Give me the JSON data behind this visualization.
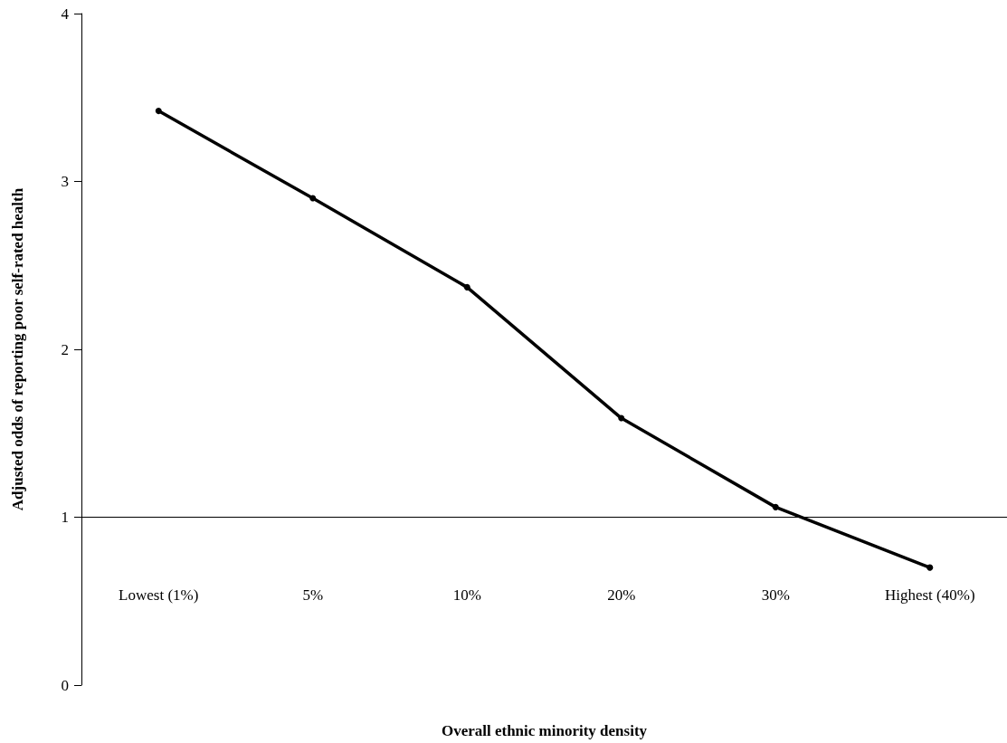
{
  "chart_data": {
    "type": "line",
    "xlabel": "Overall ethnic minority density",
    "ylabel": "Adjusted odds of reporting poor self-rated health",
    "categories": [
      "Lowest (1%)",
      "5%",
      "10%",
      "20%",
      "30%",
      "Highest (40%)"
    ],
    "series": [
      {
        "color": "#000000",
        "values": [
          3.42,
          2.9,
          2.37,
          1.59,
          1.06,
          0.7
        ]
      }
    ],
    "ylim": [
      0,
      4
    ],
    "yticks": [
      0,
      1,
      2,
      3,
      4
    ],
    "grid": false,
    "marker": "circle",
    "line_style": "solid",
    "ref_lines": [
      {
        "axis": "y",
        "value": 1,
        "color": "#000000"
      }
    ]
  }
}
